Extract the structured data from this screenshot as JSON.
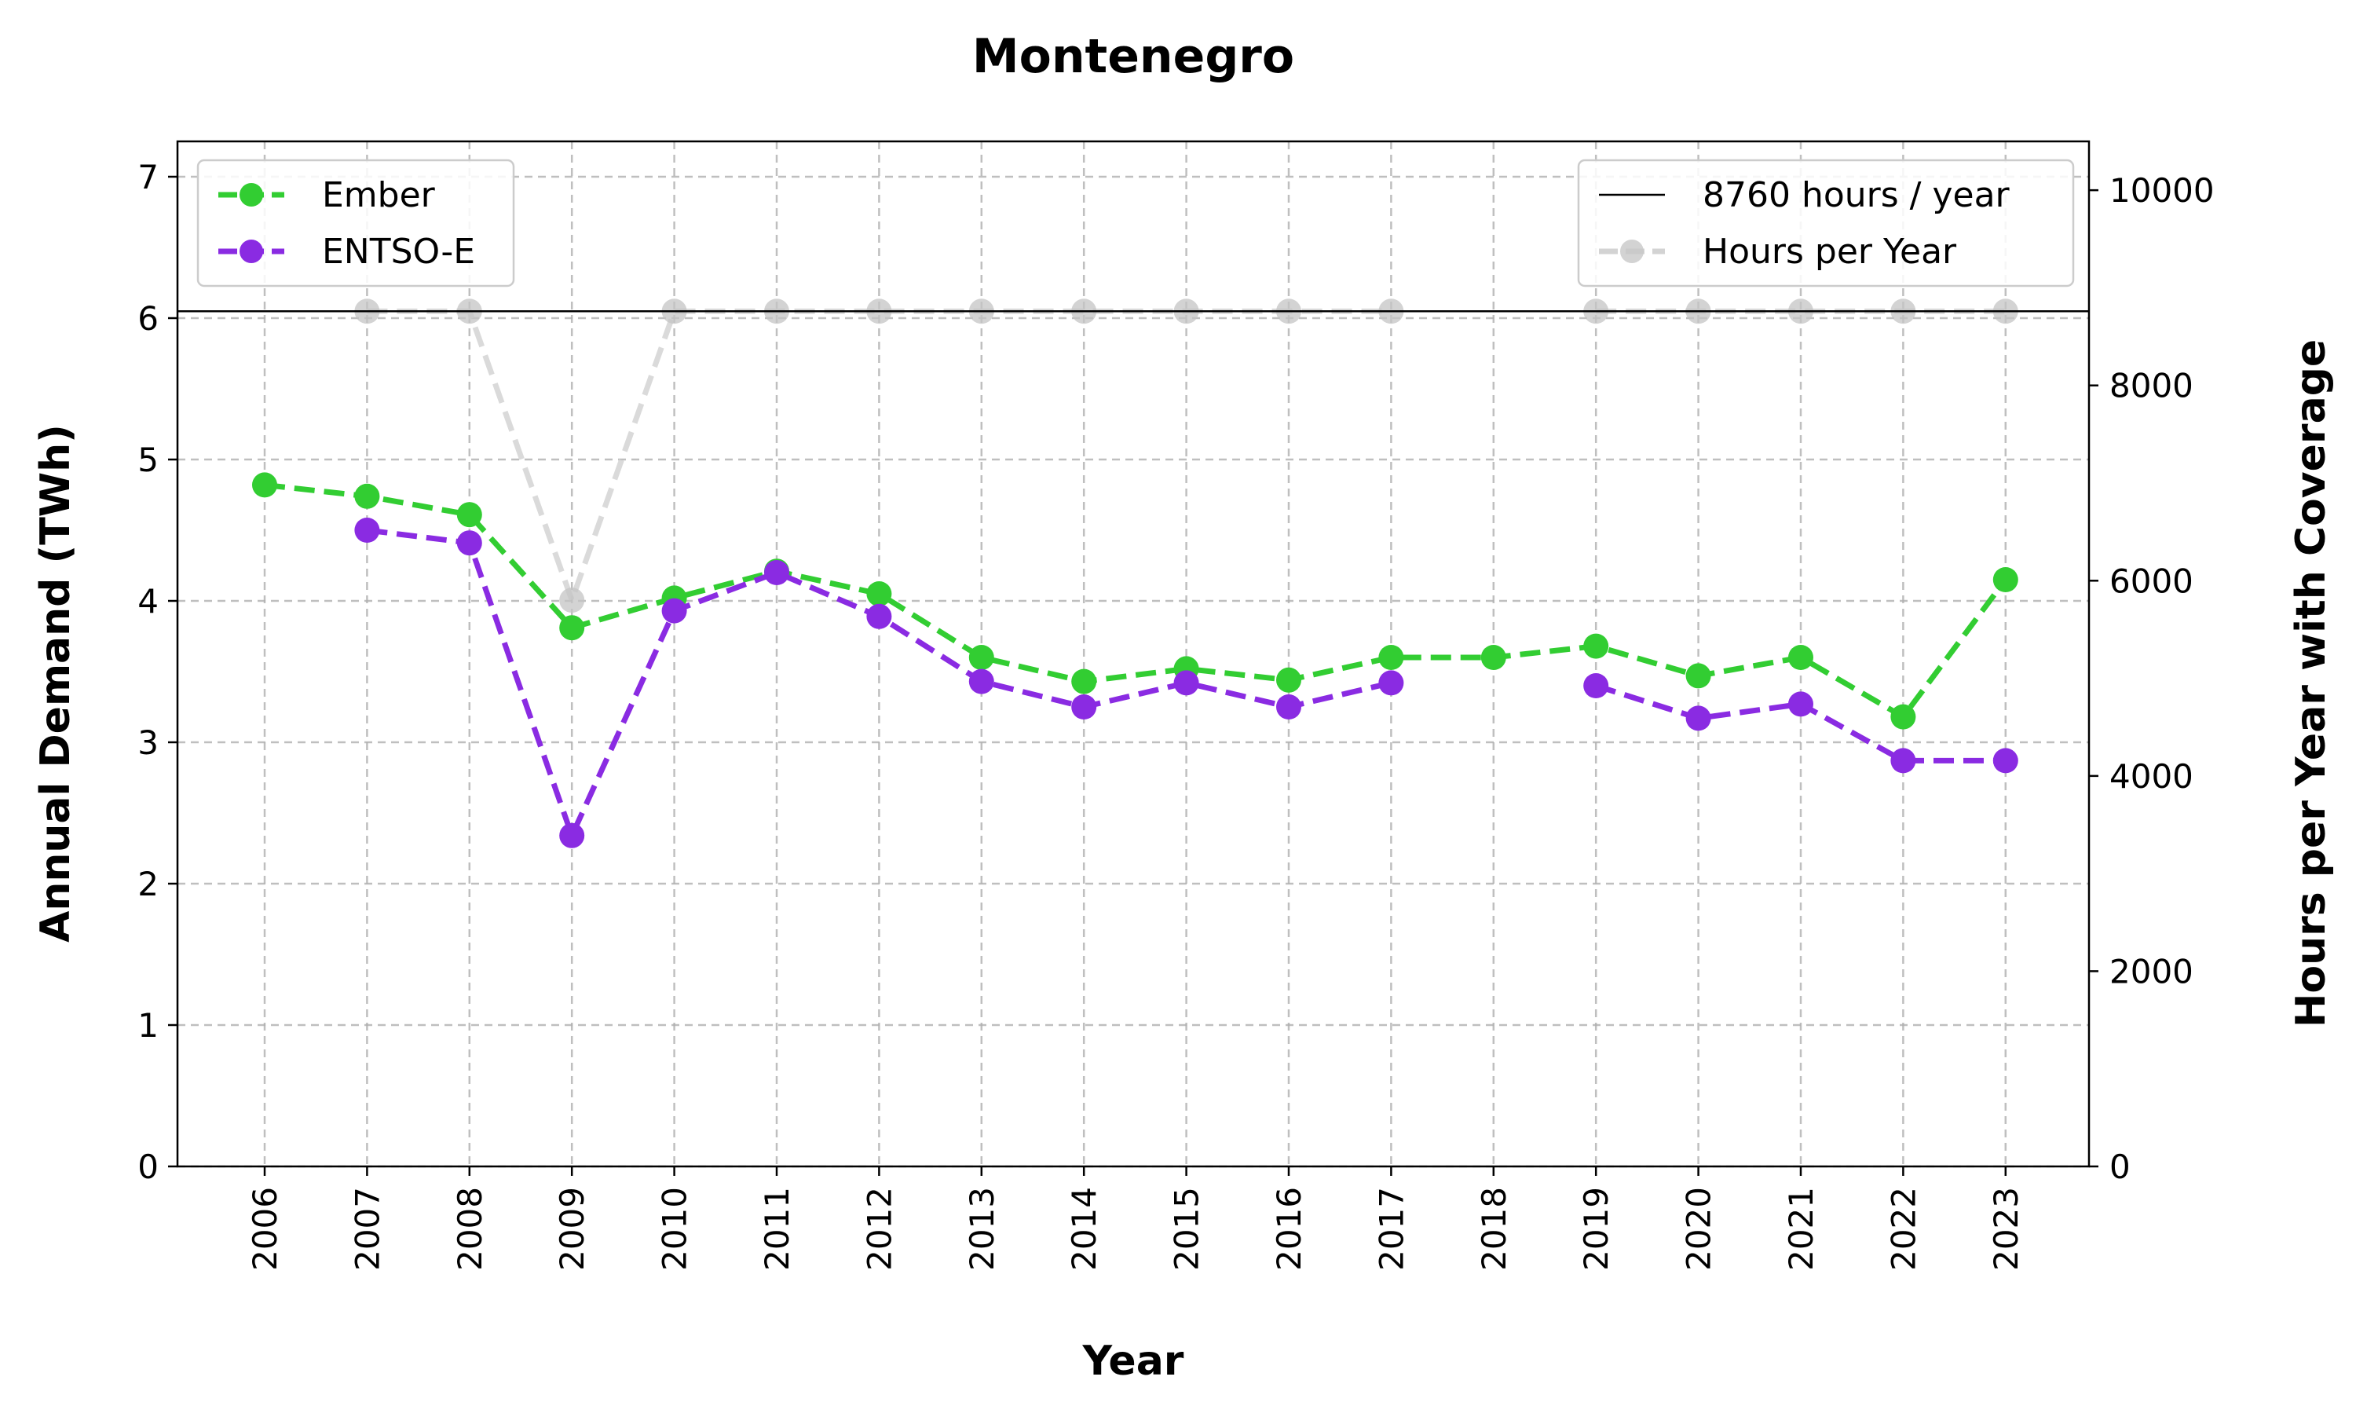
{
  "chart_data": {
    "type": "line",
    "title": "Montenegro",
    "xlabel": "Year",
    "ylabel": "Annual Demand (TWh)",
    "y2label": "Hours per Year with Coverage",
    "categories": [
      "2006",
      "2007",
      "2008",
      "2009",
      "2010",
      "2011",
      "2012",
      "2013",
      "2014",
      "2015",
      "2016",
      "2017",
      "2018",
      "2019",
      "2020",
      "2021",
      "2022",
      "2023"
    ],
    "ylim": [
      0,
      7.25
    ],
    "y2lim": [
      0,
      10500
    ],
    "yticks": [
      0,
      1,
      2,
      3,
      4,
      5,
      6,
      7
    ],
    "y2ticks": [
      0,
      2000,
      4000,
      6000,
      8000,
      10000
    ],
    "grid": true,
    "series": [
      {
        "name": "Ember",
        "axis": "left",
        "color": "#32cd32",
        "values": [
          4.82,
          4.74,
          4.61,
          3.81,
          4.02,
          4.21,
          4.05,
          3.6,
          3.43,
          3.52,
          3.44,
          3.6,
          3.6,
          3.68,
          3.47,
          3.6,
          3.18,
          4.15
        ]
      },
      {
        "name": "ENTSO-E",
        "axis": "left",
        "color": "#8a2be2",
        "values": [
          null,
          4.5,
          4.41,
          2.34,
          3.93,
          4.2,
          3.89,
          3.43,
          3.25,
          3.42,
          3.25,
          3.42,
          null,
          3.4,
          3.17,
          3.27,
          2.87,
          2.87
        ]
      },
      {
        "name": "Hours per Year",
        "axis": "right",
        "color": "#d3d3d3",
        "values": [
          null,
          8760,
          8760,
          5800,
          8760,
          8760,
          8760,
          8760,
          8760,
          8760,
          8760,
          8760,
          null,
          8760,
          8760,
          8760,
          8760,
          8760
        ]
      }
    ],
    "reference_line": {
      "label": "8760 hours / year",
      "value": 8760,
      "axis": "right",
      "color": "#000000"
    },
    "legend_left": {
      "placement": "upper-left",
      "entries": [
        "Ember",
        "ENTSO-E"
      ]
    },
    "legend_right": {
      "placement": "upper-right",
      "entries": [
        "8760 hours / year",
        "Hours per Year"
      ]
    }
  }
}
